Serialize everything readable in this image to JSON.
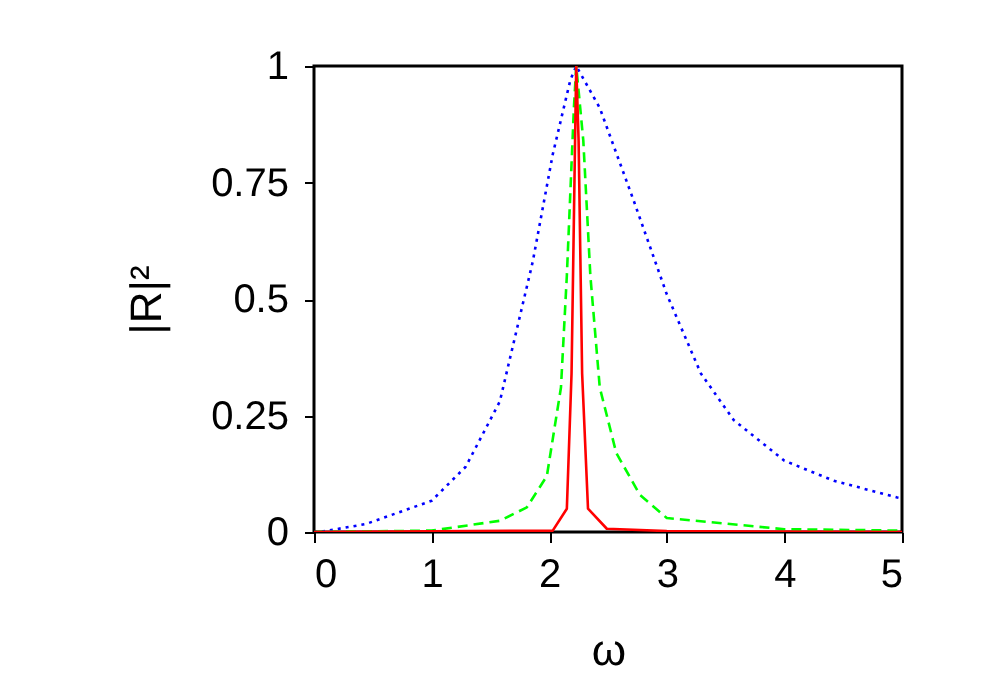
{
  "chart_data": {
    "type": "line",
    "xlabel": "ω",
    "ylabel": "|R|²",
    "xlim": [
      0,
      5
    ],
    "ylim": [
      0,
      1
    ],
    "xticks": [
      0,
      1,
      2,
      3,
      4,
      5
    ],
    "yticks": [
      0,
      0.25,
      0.5,
      0.75,
      1
    ],
    "grid": false,
    "marker": "none",
    "series": [
      {
        "color": "#0000ff",
        "line_style": "dotted",
        "x": [
          0,
          0.05,
          0.44,
          1.0,
          1.29,
          1.58,
          1.86,
          2.03,
          2.18,
          2.23,
          2.43,
          2.72,
          3.0,
          3.29,
          3.57,
          4.0,
          4.42,
          4.96,
          5
        ],
        "values": [
          0,
          0,
          0.017,
          0.067,
          0.14,
          0.28,
          0.58,
          0.81,
          0.97,
          1,
          0.91,
          0.71,
          0.51,
          0.34,
          0.24,
          0.153,
          0.11,
          0.074,
          0.072
        ]
      },
      {
        "color": "#00ff00",
        "line_style": "dashed",
        "x": [
          0,
          1.0,
          1.58,
          1.81,
          1.98,
          2.1,
          2.15,
          2.21,
          2.23,
          2.29,
          2.35,
          2.43,
          2.57,
          2.77,
          3.0,
          4.0,
          5
        ],
        "values": [
          0,
          0.003,
          0.024,
          0.053,
          0.12,
          0.31,
          0.55,
          0.91,
          1,
          0.84,
          0.55,
          0.31,
          0.17,
          0.08,
          0.03,
          0.006,
          0.003
        ]
      },
      {
        "color": "#ff0000",
        "line_style": "solid",
        "x": [
          0,
          2.03,
          2.15,
          2.19,
          2.22,
          2.23,
          2.25,
          2.28,
          2.33,
          2.49,
          3.0,
          5
        ],
        "values": [
          0,
          0.003,
          0.05,
          0.34,
          0.84,
          1,
          0.84,
          0.34,
          0.05,
          0.007,
          0.002,
          0
        ]
      }
    ]
  }
}
